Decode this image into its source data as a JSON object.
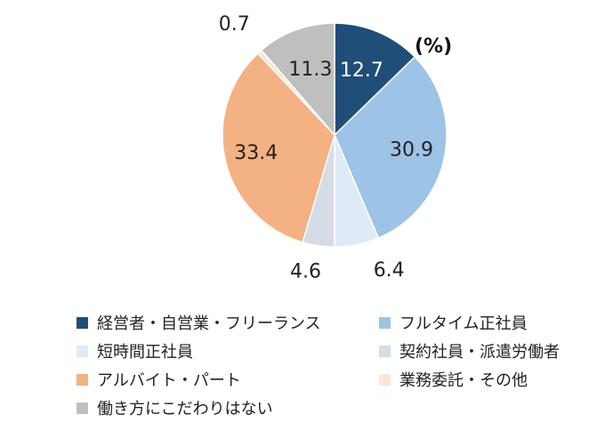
{
  "chart_data": {
    "type": "pie",
    "unit_label": "(%)",
    "slices": [
      {
        "name": "経営者・自営業・フリーランス",
        "value": 12.7,
        "label": "12.7",
        "color": "#1f4e79",
        "label_color": "#ffffff"
      },
      {
        "name": "フルタイム正社員",
        "value": 30.9,
        "label": "30.9",
        "color": "#9dc3e6",
        "label_color": "#222222"
      },
      {
        "name": "短時間正社員",
        "value": 6.4,
        "label": "6.4",
        "color": "#deebf7",
        "label_color": "#222222"
      },
      {
        "name": "契約社員・派遣労働者",
        "value": 4.6,
        "label": "4.6",
        "color": "#d6dce5",
        "label_color": "#222222"
      },
      {
        "name": "アルバイト・パート",
        "value": 33.4,
        "label": "33.4",
        "color": "#f4b183",
        "label_color": "#222222"
      },
      {
        "name": "業務委託・その他",
        "value": 0.7,
        "label": "0.7",
        "color": "#fbe5d6",
        "label_color": "#222222"
      },
      {
        "name": "働き方にこだわりはない",
        "value": 11.3,
        "label": "11.3",
        "color": "#bfbfbf",
        "label_color": "#222222"
      }
    ],
    "legend_position": "bottom"
  }
}
